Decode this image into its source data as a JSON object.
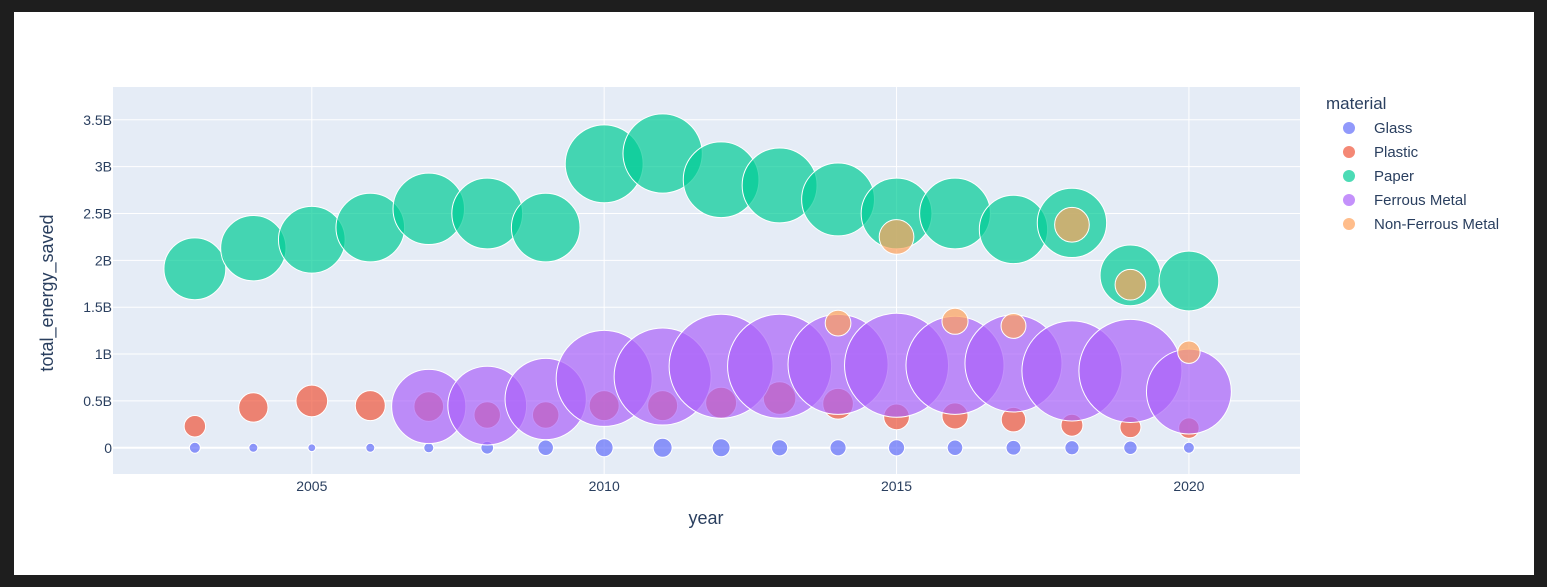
{
  "chart_data": {
    "type": "scatter",
    "xlabel": "year",
    "ylabel": "total_energy_saved",
    "xlim": [
      2001.6,
      2021.9
    ],
    "ylim": [
      -280000000,
      3850000000
    ],
    "x_ticks": [
      2005,
      2010,
      2015,
      2020
    ],
    "x_tick_labels": [
      "2005",
      "2010",
      "2015",
      "2020"
    ],
    "y_ticks": [
      0,
      500000000,
      1000000000,
      1500000000,
      2000000000,
      2500000000,
      3000000000,
      3500000000
    ],
    "y_tick_labels": [
      "0",
      "0.5B",
      "1B",
      "1.5B",
      "2B",
      "2.5B",
      "3B",
      "3.5B"
    ],
    "grid": true,
    "legend": {
      "title": "material",
      "placement": "right"
    },
    "series": [
      {
        "name": "Glass",
        "color": "#636efa",
        "x": [
          2003,
          2004,
          2005,
          2006,
          2007,
          2008,
          2009,
          2010,
          2011,
          2012,
          2013,
          2014,
          2015,
          2016,
          2017,
          2018,
          2019,
          2020
        ],
        "y": [
          0,
          0,
          0,
          0,
          0,
          0,
          0,
          0,
          0,
          0,
          0,
          0,
          0,
          0,
          0,
          0,
          0,
          0
        ],
        "size": [
          60000000,
          40000000,
          30000000,
          40000000,
          50000000,
          80000000,
          120000000,
          160000000,
          180000000,
          160000000,
          130000000,
          130000000,
          130000000,
          120000000,
          110000000,
          100000000,
          90000000,
          60000000
        ]
      },
      {
        "name": "Plastic",
        "color": "#ef553b",
        "x": [
          2003,
          2004,
          2005,
          2006,
          2007,
          2008,
          2009,
          2010,
          2011,
          2012,
          2013,
          2014,
          2015,
          2016,
          2017,
          2018,
          2019,
          2020
        ],
        "y": [
          230000000,
          430000000,
          500000000,
          450000000,
          440000000,
          350000000,
          350000000,
          450000000,
          450000000,
          480000000,
          530000000,
          470000000,
          330000000,
          340000000,
          300000000,
          240000000,
          220000000,
          210000000
        ],
        "size": [
          230000000,
          430000000,
          500000000,
          450000000,
          440000000,
          350000000,
          350000000,
          450000000,
          450000000,
          480000000,
          530000000,
          470000000,
          330000000,
          340000000,
          300000000,
          240000000,
          220000000,
          210000000
        ]
      },
      {
        "name": "Paper",
        "color": "#00cc96",
        "x": [
          2003,
          2004,
          2005,
          2006,
          2007,
          2008,
          2009,
          2010,
          2011,
          2012,
          2013,
          2014,
          2015,
          2016,
          2017,
          2018,
          2019,
          2020
        ],
        "y": [
          1910000000,
          2130000000,
          2220000000,
          2350000000,
          2550000000,
          2500000000,
          2350000000,
          3030000000,
          3140000000,
          2860000000,
          2800000000,
          2650000000,
          2500000000,
          2500000000,
          2330000000,
          2400000000,
          1840000000,
          1780000000
        ],
        "size": [
          1910000000,
          2130000000,
          2220000000,
          2350000000,
          2550000000,
          2500000000,
          2350000000,
          3030000000,
          3140000000,
          2860000000,
          2800000000,
          2650000000,
          2500000000,
          2500000000,
          2330000000,
          2400000000,
          1840000000,
          1780000000
        ]
      },
      {
        "name": "Ferrous Metal",
        "color": "#ab63fa",
        "x": [
          2007,
          2008,
          2009,
          2010,
          2011,
          2012,
          2013,
          2014,
          2015,
          2016,
          2017,
          2018,
          2019,
          2020
        ],
        "y": [
          440000000,
          450000000,
          520000000,
          740000000,
          760000000,
          870000000,
          870000000,
          890000000,
          880000000,
          880000000,
          900000000,
          820000000,
          820000000,
          600000000
        ],
        "size": [
          2750000000,
          3100000000,
          3300000000,
          4600000000,
          4700000000,
          5400000000,
          5400000000,
          5000000000,
          5400000000,
          4800000000,
          4700000000,
          5000000000,
          5300000000,
          3600000000
        ]
      },
      {
        "name": "Non-Ferrous Metal",
        "color": "#ffa15a",
        "x": [
          2014,
          2015,
          2016,
          2017,
          2018,
          2019,
          2020
        ],
        "y": [
          1330000000,
          2250000000,
          1350000000,
          1300000000,
          2380000000,
          1740000000,
          1020000000
        ],
        "size": [
          330000000,
          600000000,
          340000000,
          310000000,
          600000000,
          470000000,
          250000000
        ]
      }
    ]
  }
}
